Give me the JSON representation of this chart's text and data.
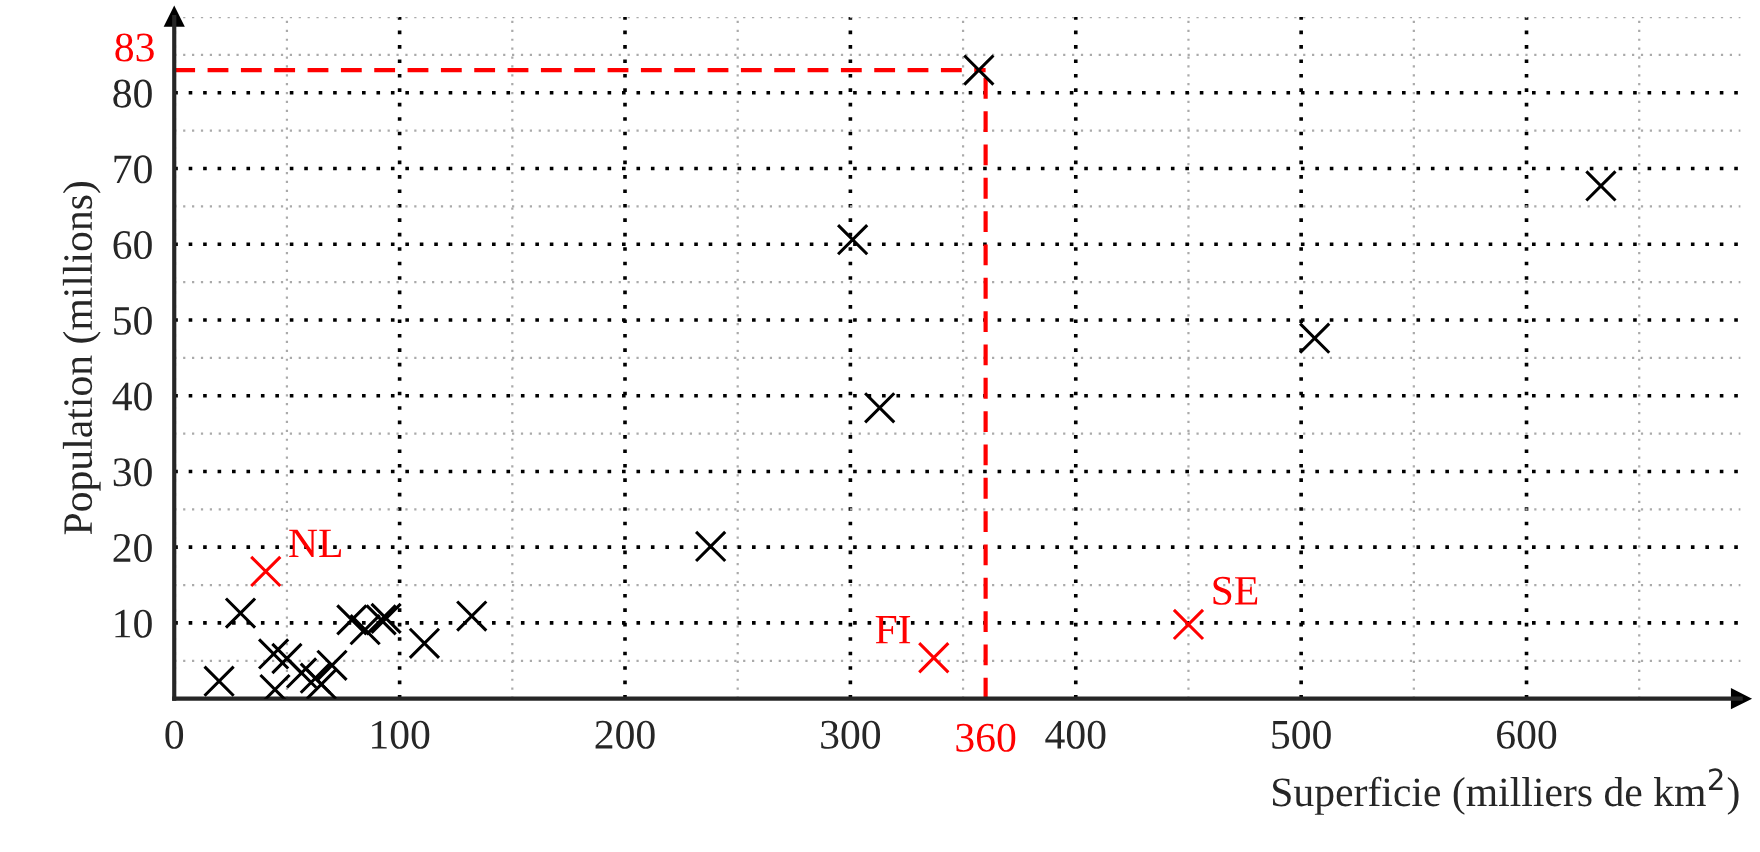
{
  "chart_data": {
    "type": "scatter",
    "xlabel": "Superficie (milliers de km$^{2}$)",
    "ylabel": "Population (millions)",
    "x": [
      357,
      633,
      506,
      301,
      313,
      238,
      450,
      337,
      40.6,
      29.4,
      19.9,
      44.1,
      44.7,
      50,
      56.5,
      62.6,
      65.3,
      70,
      78.8,
      84.7,
      91.8,
      94,
      111,
      132
    ],
    "values": [
      83,
      67.7,
      47.6,
      60.6,
      38.4,
      20.1,
      9.8,
      5.4,
      16.8,
      11.3,
      2.3,
      5.9,
      1.2,
      5.3,
      3.4,
      2.7,
      1.9,
      4.4,
      10.4,
      9.1,
      10.4,
      10.6,
      7.3,
      10.9
    ],
    "colors": [
      "#000000",
      "#000000",
      "#000000",
      "#000000",
      "#000000",
      "#000000",
      "#ff0000",
      "#ff0000",
      "#ff0000",
      "#000000",
      "#000000",
      "#000000",
      "#000000",
      "#000000",
      "#000000",
      "#000000",
      "#000000",
      "#000000",
      "#000000",
      "#000000",
      "#000000",
      "#000000",
      "#000000",
      "#000000"
    ],
    "marker": "cross",
    "annotations": [
      {
        "text": "NL",
        "x": 40.6,
        "y": 16.8
      },
      {
        "text": "FI",
        "x": 337,
        "y": 5.4
      },
      {
        "text": "SE",
        "x": 450,
        "y": 9.8
      }
    ],
    "ref_lines": [
      {
        "axis": "y",
        "value": 83,
        "label": "83",
        "color": "#ff0000",
        "line_style": "dashed"
      },
      {
        "axis": "x",
        "value": 360,
        "label": "360",
        "color": "#ff0000",
        "line_style": "dashed"
      }
    ],
    "xlim": [
      0,
      695
    ],
    "ylim": [
      0,
      90
    ],
    "xticks": [
      0,
      100,
      200,
      300,
      400,
      500,
      600
    ],
    "yticks": [
      10,
      20,
      30,
      40,
      50,
      60,
      70,
      80
    ],
    "grid": true
  }
}
